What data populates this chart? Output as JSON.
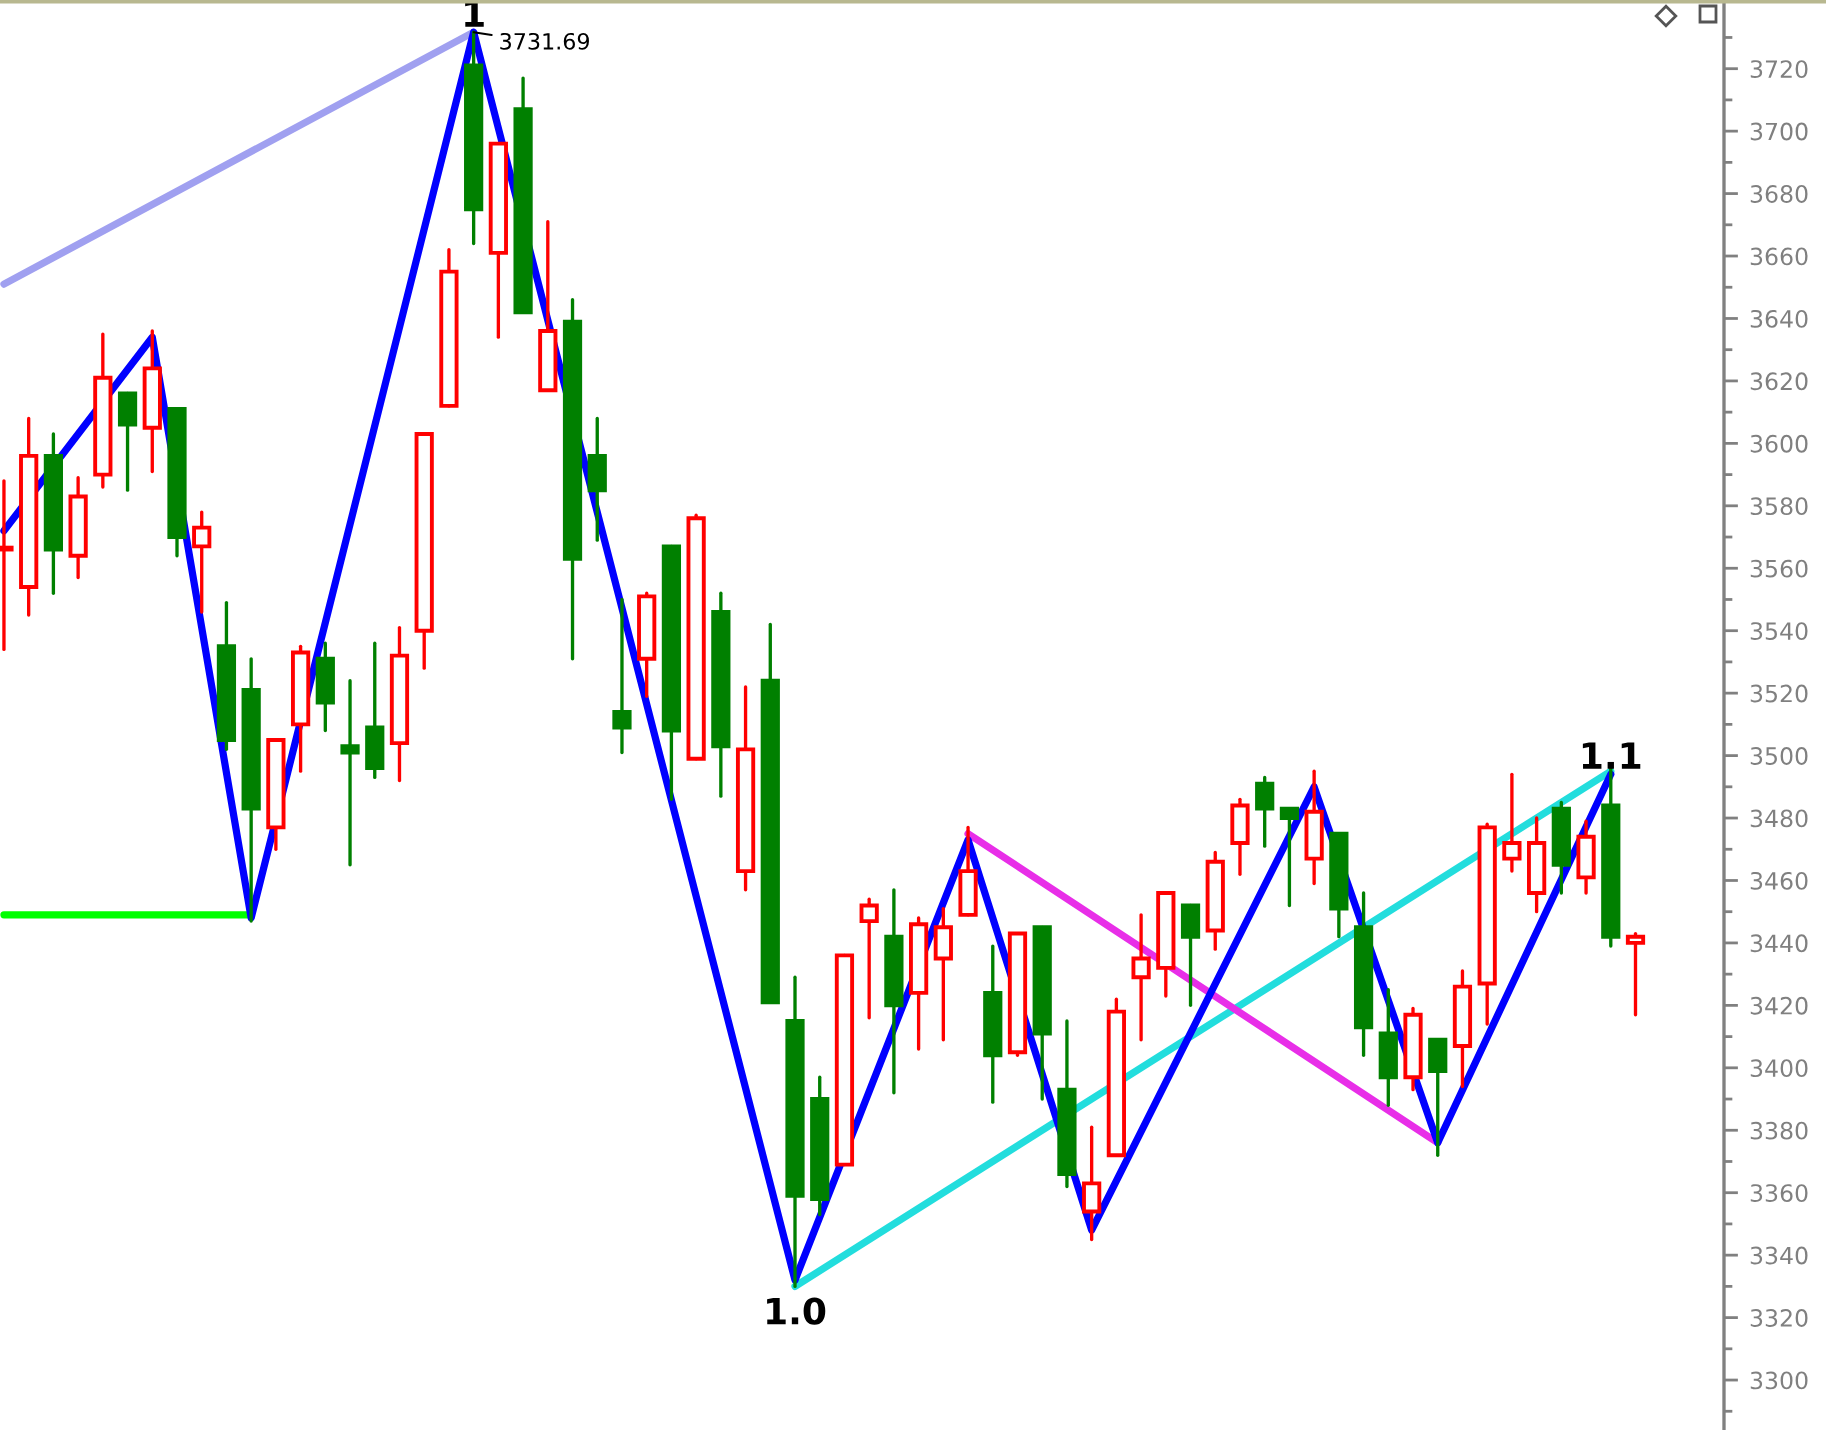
{
  "chart_data": {
    "type": "candlestick",
    "categories": [
      null,
      null,
      null,
      null,
      null,
      null,
      null,
      null,
      null,
      null,
      null,
      null,
      null,
      null,
      null,
      null,
      null,
      null,
      null,
      null,
      null,
      null,
      null,
      null,
      null,
      null,
      null,
      null,
      null,
      null,
      null,
      null,
      null,
      null,
      null,
      null,
      null,
      null,
      null,
      null,
      null,
      null,
      null,
      null,
      null,
      null,
      null,
      null,
      null,
      null,
      null,
      null,
      null,
      null,
      null,
      null,
      null,
      null,
      null,
      null,
      null,
      null,
      null,
      null,
      null,
      null,
      null
    ],
    "ohlc": [
      [
        3566,
        3588,
        3534,
        3566
      ],
      [
        3554,
        3608,
        3545,
        3596
      ],
      [
        3596,
        3603,
        3552,
        3566
      ],
      [
        3564,
        3589,
        3557,
        3583
      ],
      [
        3590,
        3635,
        3586,
        3621
      ],
      [
        3616,
        3616,
        3585,
        3606
      ],
      [
        3605,
        3636,
        3591,
        3624
      ],
      [
        3611,
        3611,
        3564,
        3570
      ],
      [
        3567,
        3578,
        3546,
        3573
      ],
      [
        3535,
        3549,
        3502,
        3505
      ],
      [
        3521,
        3531,
        3447,
        3483
      ],
      [
        3477,
        3505,
        3470,
        3505
      ],
      [
        3510,
        3535,
        3495,
        3533
      ],
      [
        3531,
        3536,
        3508,
        3517
      ],
      [
        3503,
        3524,
        3465,
        3501
      ],
      [
        3509,
        3536,
        3493,
        3496
      ],
      [
        3504,
        3541,
        3492,
        3532
      ],
      [
        3540,
        3603,
        3528,
        3603
      ],
      [
        3612,
        3662,
        3612,
        3655
      ],
      [
        3721,
        3731.69,
        3664,
        3675
      ],
      [
        3661,
        3696,
        3634,
        3696
      ],
      [
        3707,
        3717,
        3642,
        3642
      ],
      [
        3617,
        3671,
        3617,
        3636
      ],
      [
        3639,
        3646,
        3531,
        3563
      ],
      [
        3596,
        3608,
        3569,
        3585
      ],
      [
        3514,
        3550,
        3501,
        3509
      ],
      [
        3531,
        3552,
        3519,
        3551
      ],
      [
        3567,
        3567,
        3486,
        3508
      ],
      [
        3499,
        3577,
        3499,
        3576
      ],
      [
        3546,
        3552,
        3487,
        3503
      ],
      [
        3463,
        3522,
        3457,
        3502
      ],
      [
        3524,
        3542,
        3421,
        3421
      ],
      [
        3415,
        3429,
        3330,
        3359
      ],
      [
        3390,
        3397,
        3353,
        3358
      ],
      [
        3369,
        3436,
        3369,
        3436
      ],
      [
        3447,
        3454,
        3416,
        3452
      ],
      [
        3442,
        3457,
        3392,
        3420
      ],
      [
        3424,
        3448,
        3406,
        3446
      ],
      [
        3435,
        3451,
        3409,
        3445
      ],
      [
        3449,
        3477,
        3449,
        3463
      ],
      [
        3424,
        3439,
        3389,
        3404
      ],
      [
        3405,
        3443,
        3404,
        3443
      ],
      [
        3445,
        3445,
        3390,
        3411
      ],
      [
        3393,
        3415,
        3362,
        3366
      ],
      [
        3354,
        3381,
        3345,
        3363
      ],
      [
        3372,
        3422,
        3372,
        3418
      ],
      [
        3429,
        3449,
        3409,
        3435
      ],
      [
        3432,
        3456,
        3423,
        3456
      ],
      [
        3452,
        3452,
        3420,
        3442
      ],
      [
        3444,
        3469,
        3438,
        3466
      ],
      [
        3472,
        3486,
        3462,
        3484
      ],
      [
        3491,
        3493,
        3471,
        3483
      ],
      [
        3483,
        3483,
        3452,
        3480
      ],
      [
        3467,
        3495,
        3459,
        3482
      ],
      [
        3475,
        3475,
        3442,
        3451
      ],
      [
        3445,
        3456,
        3404,
        3413
      ],
      [
        3411,
        3425,
        3388,
        3397
      ],
      [
        3397,
        3419,
        3393,
        3417
      ],
      [
        3409,
        3409,
        3372,
        3399
      ],
      [
        3407,
        3431,
        3394,
        3426
      ],
      [
        3427,
        3478,
        3414,
        3477
      ],
      [
        3467,
        3494,
        3463,
        3472
      ],
      [
        3456,
        3480,
        3450,
        3472
      ],
      [
        3483,
        3485,
        3456,
        3465
      ],
      [
        3461,
        3479,
        3456,
        3474
      ],
      [
        3484,
        3497,
        3439,
        3442
      ],
      [
        3440,
        3443,
        3417,
        3442
      ]
    ],
    "colors": [
      "#ff0000",
      "#ff0000",
      "#008000",
      "#ff0000",
      "#ff0000",
      "#008000",
      "#ff0000",
      "#008000",
      "#ff0000",
      "#008000",
      "#008000",
      "#ff0000",
      "#ff0000",
      "#008000",
      "#008000",
      "#008000",
      "#ff0000",
      "#ff0000",
      "#ff0000",
      "#008000",
      "#ff0000",
      "#008000",
      "#ff0000",
      "#008000",
      "#008000",
      "#008000",
      "#ff0000",
      "#008000",
      "#ff0000",
      "#008000",
      "#ff0000",
      "#008000",
      "#008000",
      "#008000",
      "#ff0000",
      "#ff0000",
      "#008000",
      "#ff0000",
      "#ff0000",
      "#ff0000",
      "#008000",
      "#ff0000",
      "#008000",
      "#008000",
      "#ff0000",
      "#ff0000",
      "#ff0000",
      "#ff0000",
      "#008000",
      "#ff0000",
      "#ff0000",
      "#008000",
      "#008000",
      "#ff0000",
      "#008000",
      "#008000",
      "#008000",
      "#ff0000",
      "#008000",
      "#ff0000",
      "#ff0000",
      "#ff0000",
      "#ff0000",
      "#008000",
      "#ff0000",
      "#008000",
      "#ff0000"
    ],
    "value_labels": [
      null,
      null,
      null,
      null,
      null,
      null,
      null,
      null,
      null,
      null,
      null,
      null,
      null,
      null,
      null,
      null,
      null,
      null,
      null,
      "3731.69",
      null,
      null,
      null,
      null,
      null,
      null,
      null,
      null,
      null,
      null,
      null,
      null,
      null,
      null,
      null,
      null,
      null,
      null,
      null,
      null,
      null,
      null,
      null,
      null,
      null,
      null,
      null,
      null,
      null,
      null,
      null,
      null,
      null,
      null,
      null,
      null,
      null,
      null,
      null,
      null,
      null,
      null,
      null,
      null,
      null,
      null,
      null
    ],
    "series": [
      {
        "type": "line",
        "color": "#a0a0f0",
        "values": [
          3651,
          null,
          null,
          null,
          null,
          null,
          null,
          null,
          null,
          null,
          null,
          null,
          null,
          null,
          null,
          null,
          null,
          null,
          null,
          3731.69,
          null,
          null,
          null,
          null,
          null,
          null,
          null,
          null,
          null,
          null,
          null,
          null,
          null,
          null,
          null,
          null,
          null,
          null,
          null,
          null,
          null,
          null,
          null,
          null,
          null,
          null,
          null,
          null,
          null,
          null,
          null,
          null,
          null,
          null,
          null,
          null,
          null,
          null,
          null,
          null,
          null,
          null,
          null,
          null,
          null,
          null,
          null
        ]
      },
      {
        "type": "line",
        "color": "#00ff00",
        "values": [
          3449,
          null,
          null,
          null,
          null,
          null,
          null,
          null,
          null,
          null,
          3449,
          null,
          null,
          null,
          null,
          null,
          null,
          null,
          null,
          null,
          null,
          null,
          null,
          null,
          null,
          null,
          null,
          null,
          null,
          null,
          null,
          null,
          null,
          null,
          null,
          null,
          null,
          null,
          null,
          null,
          null,
          null,
          null,
          null,
          null,
          null,
          null,
          null,
          null,
          null,
          null,
          null,
          null,
          null,
          null,
          null,
          null,
          null,
          null,
          null,
          null,
          null,
          null,
          null,
          null,
          null,
          null
        ]
      },
      {
        "type": "line",
        "color": "#22dddd",
        "values": [
          null,
          null,
          null,
          null,
          null,
          null,
          null,
          null,
          null,
          null,
          null,
          null,
          null,
          null,
          null,
          null,
          null,
          null,
          null,
          null,
          null,
          null,
          null,
          null,
          null,
          null,
          null,
          null,
          null,
          null,
          null,
          null,
          3330,
          null,
          null,
          null,
          null,
          null,
          null,
          null,
          null,
          null,
          null,
          null,
          null,
          null,
          null,
          null,
          null,
          null,
          null,
          null,
          null,
          null,
          null,
          null,
          null,
          null,
          null,
          null,
          null,
          null,
          null,
          null,
          null,
          3495,
          null
        ]
      },
      {
        "type": "line",
        "color": "#e82ee8",
        "values": [
          null,
          null,
          null,
          null,
          null,
          null,
          null,
          null,
          null,
          null,
          null,
          null,
          null,
          null,
          null,
          null,
          null,
          null,
          null,
          null,
          null,
          null,
          null,
          null,
          null,
          null,
          null,
          null,
          null,
          null,
          null,
          null,
          null,
          null,
          null,
          null,
          null,
          null,
          null,
          3475,
          null,
          null,
          null,
          null,
          null,
          null,
          null,
          null,
          null,
          null,
          null,
          null,
          null,
          null,
          null,
          null,
          null,
          null,
          3376,
          null,
          null,
          null,
          null,
          null,
          null,
          null,
          null
        ]
      },
      {
        "type": "line",
        "color": "#0000ff",
        "values": [
          3572,
          null,
          null,
          null,
          null,
          null,
          3634,
          null,
          null,
          null,
          3448,
          null,
          null,
          null,
          null,
          null,
          null,
          null,
          null,
          3731.69,
          null,
          null,
          null,
          null,
          null,
          null,
          null,
          null,
          null,
          null,
          null,
          null,
          3332,
          null,
          null,
          null,
          null,
          null,
          null,
          3473,
          null,
          null,
          null,
          null,
          3348,
          null,
          null,
          null,
          null,
          null,
          null,
          null,
          null,
          3490,
          null,
          null,
          null,
          null,
          3376,
          null,
          null,
          null,
          null,
          null,
          null,
          3494,
          null
        ]
      }
    ],
    "annotations": [
      {
        "text": "1",
        "y": 3731.69
      },
      {
        "text": "1.0",
        "y": 3332
      },
      {
        "text": "1.1",
        "y": 3494
      }
    ],
    "ylim": [
      3284,
      3742
    ],
    "yticks": [
      3300,
      3320,
      3340,
      3360,
      3380,
      3400,
      3420,
      3440,
      3460,
      3480,
      3500,
      3520,
      3540,
      3560,
      3580,
      3600,
      3620,
      3640,
      3660,
      3680,
      3700,
      3720
    ],
    "tick_labels": "y"
  }
}
